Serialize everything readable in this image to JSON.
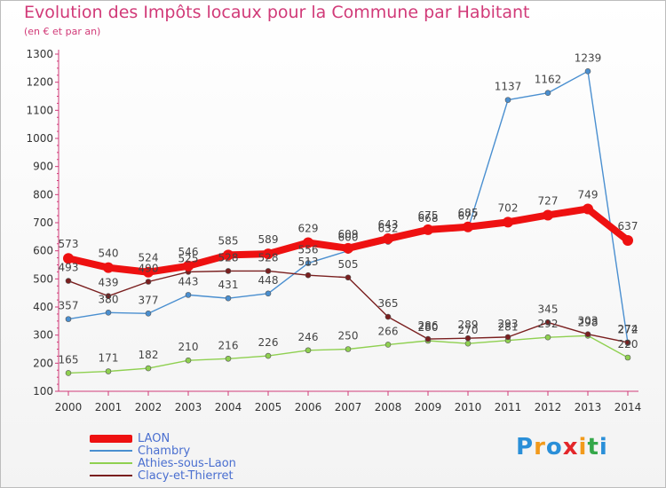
{
  "title": "Evolution des Impôts locaux pour la Commune par Habitant",
  "subtitle": "(en € et par an)",
  "brand": {
    "letters": [
      "P",
      "r",
      "o",
      "x",
      "i",
      "t",
      "i"
    ],
    "colors": [
      "#2a8fd8",
      "#f29a1b",
      "#2a8fd8",
      "#e3262a",
      "#f29a1b",
      "#35a84a",
      "#2a8fd8"
    ]
  },
  "chart_data": {
    "type": "line",
    "x": [
      "2000",
      "2001",
      "2002",
      "2003",
      "2004",
      "2005",
      "2006",
      "2007",
      "2008",
      "2009",
      "2010",
      "2011",
      "2012",
      "2013",
      "2014"
    ],
    "ylim": [
      100,
      1300
    ],
    "yticks": [
      "100",
      "200",
      "300",
      "400",
      "500",
      "600",
      "700",
      "800",
      "900",
      "1000",
      "1100",
      "1200",
      "1300"
    ],
    "grid": false,
    "legend_position": "bottom-left",
    "series": [
      {
        "name": "LAON",
        "color": "#ee1111",
        "values": [
          573,
          540,
          524,
          546,
          585,
          589,
          629,
          609,
          643,
          675,
          685,
          702,
          727,
          749,
          637
        ]
      },
      {
        "name": "Chambry",
        "color": "#4a8fd0",
        "values": [
          357,
          380,
          377,
          443,
          431,
          448,
          556,
          600,
          632,
          668,
          677,
          1137,
          1162,
          1239,
          272
        ]
      },
      {
        "name": "Athies-sous-Laon",
        "color": "#8fd050",
        "values": [
          165,
          171,
          182,
          210,
          216,
          226,
          246,
          250,
          266,
          280,
          270,
          281,
          292,
          298,
          220
        ]
      },
      {
        "name": "Clacy-et-Thierret",
        "color": "#7a1f1f",
        "values": [
          493,
          439,
          490,
          525,
          528,
          528,
          513,
          505,
          365,
          286,
          289,
          293,
          345,
          303,
          274
        ]
      }
    ]
  }
}
